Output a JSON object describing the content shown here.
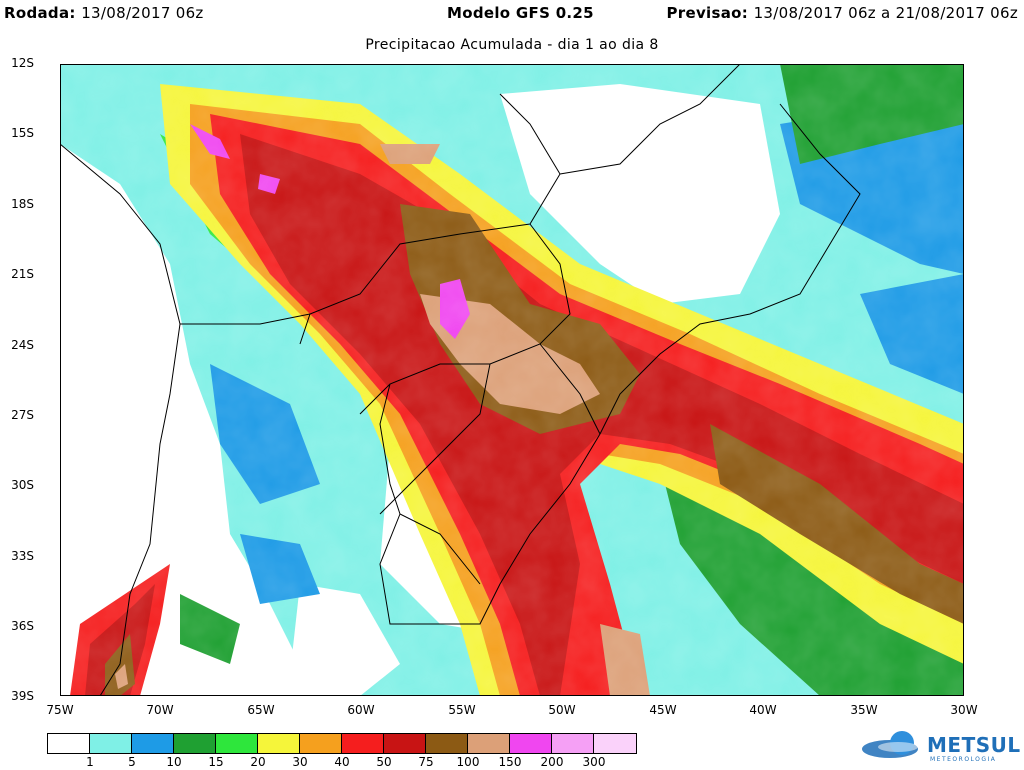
{
  "header": {
    "rodada_label": "Rodada:",
    "rodada_value": "13/08/2017 06z",
    "model": "Modelo GFS 0.25",
    "previsao_label": "Previsao:",
    "previsao_value": "13/08/2017 06z a 21/08/2017 06z"
  },
  "subtitle": "Precipitacao Acumulada - dia 1 ao dia 8",
  "axes": {
    "lat_labels": [
      "12S",
      "15S",
      "18S",
      "21S",
      "24S",
      "27S",
      "30S",
      "33S",
      "36S",
      "39S"
    ],
    "lon_labels": [
      "75W",
      "70W",
      "65W",
      "60W",
      "55W",
      "50W",
      "45W",
      "40W",
      "35W",
      "30W"
    ]
  },
  "legend": {
    "colors": [
      "#ffffff",
      "#7ff0e6",
      "#1e9be6",
      "#1fa032",
      "#2ee63c",
      "#f5f53a",
      "#f5a01e",
      "#f51e1e",
      "#c81414",
      "#8c5a14",
      "#dca078",
      "#f046f0",
      "#f5a0f5",
      "#fad2fa"
    ],
    "labels": [
      "1",
      "5",
      "10",
      "15",
      "20",
      "30",
      "40",
      "50",
      "75",
      "100",
      "150",
      "200",
      "300"
    ]
  },
  "brand": {
    "name": "METSUL",
    "tagline": "METEOROLOGIA"
  }
}
